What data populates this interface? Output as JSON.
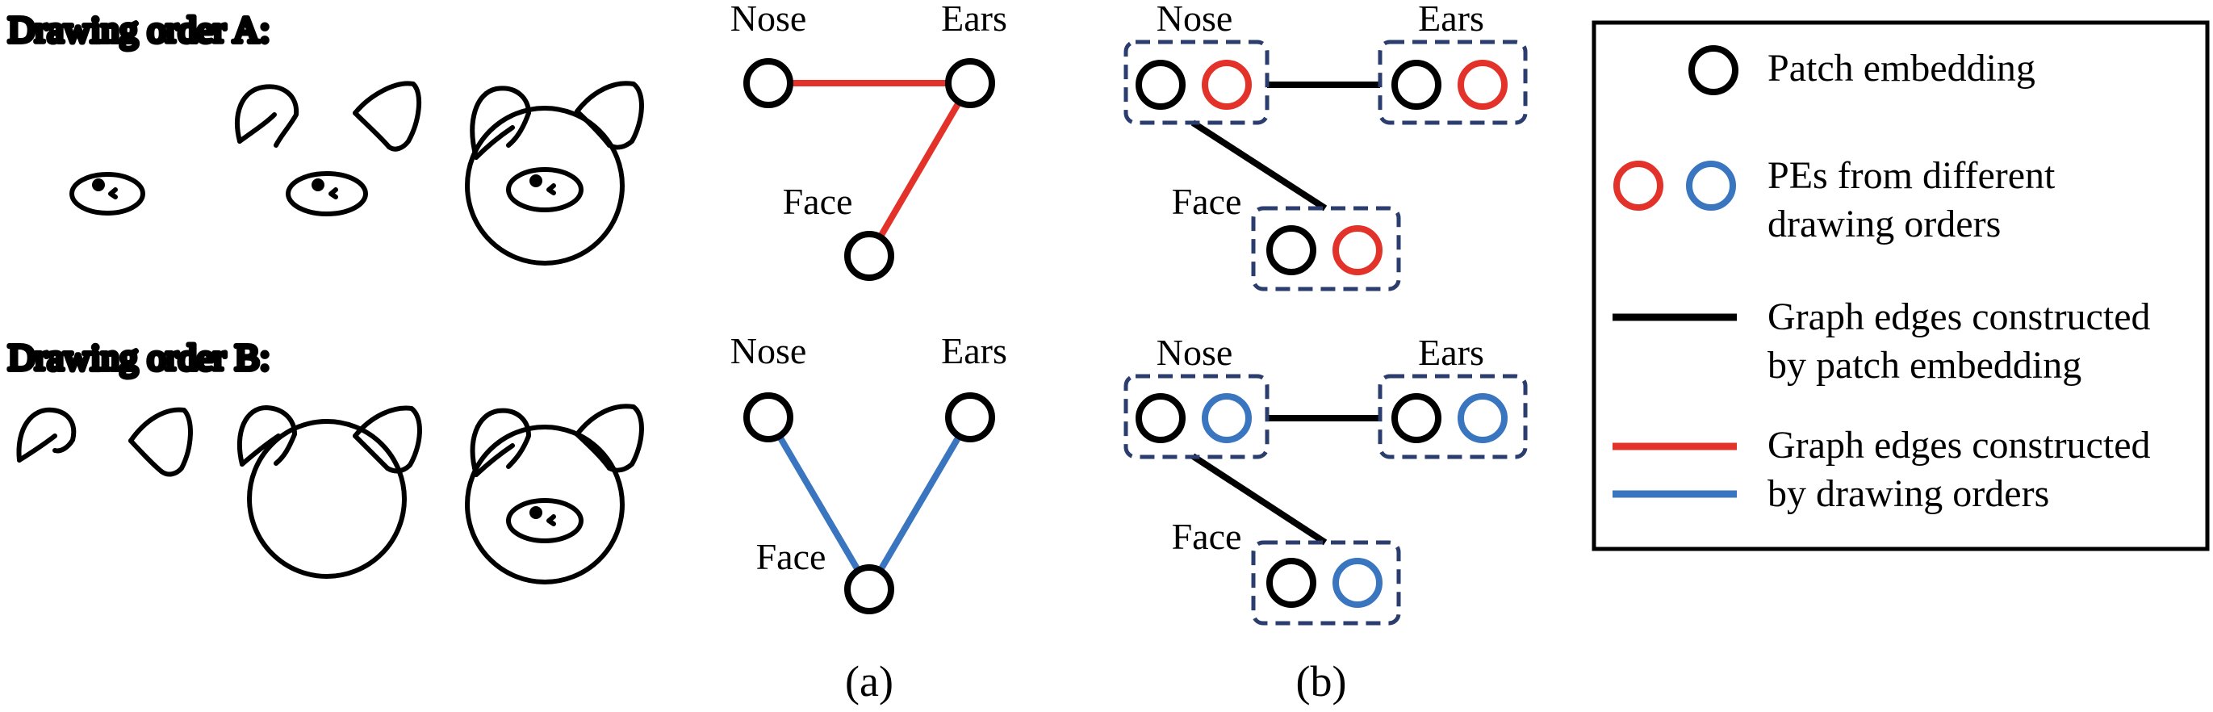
{
  "colors": {
    "red": "#e2322a",
    "blue": "#3a75bf",
    "black": "#000000",
    "dashed_box": "#2a3d6e"
  },
  "sketches": {
    "order_a_label": "Drawing order A:",
    "order_b_label": "Drawing order B:"
  },
  "panel_a": {
    "top": {
      "nose": "Nose",
      "ears": "Ears",
      "face": "Face"
    },
    "bottom": {
      "nose": "Nose",
      "ears": "Ears",
      "face": "Face"
    },
    "caption": "(a)"
  },
  "panel_b": {
    "top": {
      "nose": "Nose",
      "ears": "Ears",
      "face": "Face"
    },
    "bottom": {
      "nose": "Nose",
      "ears": "Ears",
      "face": "Face"
    },
    "caption": "(b)"
  },
  "legend": {
    "patch_embedding": "Patch embedding",
    "pes_line1": "PEs from different",
    "pes_line2": "drawing orders",
    "graph_pe_line1": "Graph edges constructed",
    "graph_pe_line2": "by patch embedding",
    "graph_do_line1": "Graph edges constructed",
    "graph_do_line2": "by drawing orders"
  }
}
